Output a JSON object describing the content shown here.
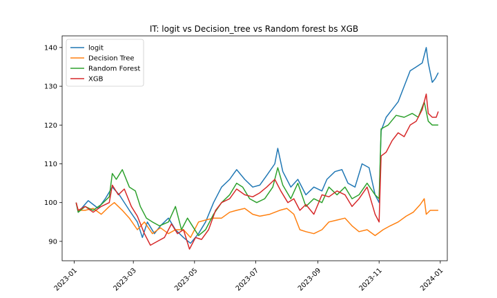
{
  "chart_data": {
    "type": "line",
    "title": "IT: logit vs Decision_tree vs Random forest bs XGB",
    "xlabel": "",
    "ylabel": "",
    "xlim": [
      "2022-12-20",
      "2024-01-08"
    ],
    "ylim": [
      85,
      143
    ],
    "x_ticks": [
      "2023-01",
      "2023-03",
      "2023-05",
      "2023-07",
      "2023-09",
      "2023-11",
      "2024-01"
    ],
    "y_ticks": [
      90,
      100,
      110,
      120,
      130,
      140
    ],
    "grid": false,
    "legend_position": "top-left",
    "series": [
      {
        "name": "logit",
        "color": "#1f77b4",
        "points": [
          [
            "2023-01-03",
            100
          ],
          [
            "2023-01-05",
            97.5
          ],
          [
            "2023-01-10",
            99
          ],
          [
            "2023-01-15",
            100.5
          ],
          [
            "2023-01-25",
            98.5
          ],
          [
            "2023-02-01",
            101
          ],
          [
            "2023-02-08",
            104
          ],
          [
            "2023-02-15",
            102
          ],
          [
            "2023-02-25",
            98
          ],
          [
            "2023-03-05",
            95
          ],
          [
            "2023-03-10",
            91
          ],
          [
            "2023-03-15",
            95
          ],
          [
            "2023-03-22",
            92
          ],
          [
            "2023-03-28",
            94
          ],
          [
            "2023-04-05",
            96
          ],
          [
            "2023-04-12",
            93
          ],
          [
            "2023-04-20",
            91
          ],
          [
            "2023-04-27",
            89.5
          ],
          [
            "2023-05-05",
            92
          ],
          [
            "2023-05-12",
            95
          ],
          [
            "2023-05-20",
            100
          ],
          [
            "2023-05-28",
            104
          ],
          [
            "2023-06-05",
            106
          ],
          [
            "2023-06-12",
            108.5
          ],
          [
            "2023-06-20",
            106
          ],
          [
            "2023-06-28",
            104
          ],
          [
            "2023-07-05",
            104.5
          ],
          [
            "2023-07-12",
            107
          ],
          [
            "2023-07-20",
            110
          ],
          [
            "2023-07-23",
            114
          ],
          [
            "2023-07-28",
            108
          ],
          [
            "2023-08-05",
            104
          ],
          [
            "2023-08-12",
            106
          ],
          [
            "2023-08-20",
            102
          ],
          [
            "2023-08-28",
            104
          ],
          [
            "2023-09-05",
            103
          ],
          [
            "2023-09-10",
            106
          ],
          [
            "2023-09-18",
            108
          ],
          [
            "2023-09-25",
            108.5
          ],
          [
            "2023-10-01",
            105
          ],
          [
            "2023-10-08",
            104
          ],
          [
            "2023-10-15",
            110
          ],
          [
            "2023-10-22",
            109
          ],
          [
            "2023-10-28",
            102
          ],
          [
            "2023-11-01",
            100
          ],
          [
            "2023-11-03",
            118.5
          ],
          [
            "2023-11-08",
            122
          ],
          [
            "2023-11-14",
            124
          ],
          [
            "2023-11-20",
            126
          ],
          [
            "2023-11-26",
            130
          ],
          [
            "2023-12-02",
            134
          ],
          [
            "2023-12-08",
            135
          ],
          [
            "2023-12-14",
            136
          ],
          [
            "2023-12-18",
            140
          ],
          [
            "2023-12-20",
            136
          ],
          [
            "2023-12-24",
            131
          ],
          [
            "2023-12-27",
            132
          ],
          [
            "2023-12-30",
            133.5
          ]
        ]
      },
      {
        "name": "Decision Tree",
        "color": "#ff7f0e",
        "points": [
          [
            "2023-01-03",
            100
          ],
          [
            "2023-01-05",
            98
          ],
          [
            "2023-01-12",
            98
          ],
          [
            "2023-01-20",
            98.5
          ],
          [
            "2023-01-28",
            97
          ],
          [
            "2023-02-05",
            99
          ],
          [
            "2023-02-10",
            100
          ],
          [
            "2023-02-18",
            98
          ],
          [
            "2023-02-25",
            96
          ],
          [
            "2023-03-05",
            93
          ],
          [
            "2023-03-12",
            95
          ],
          [
            "2023-03-20",
            92
          ],
          [
            "2023-03-28",
            93.5
          ],
          [
            "2023-04-05",
            92
          ],
          [
            "2023-04-12",
            93
          ],
          [
            "2023-04-20",
            93
          ],
          [
            "2023-04-27",
            91
          ],
          [
            "2023-05-05",
            95
          ],
          [
            "2023-05-12",
            95.5
          ],
          [
            "2023-05-20",
            96
          ],
          [
            "2023-05-28",
            96
          ],
          [
            "2023-06-05",
            97.5
          ],
          [
            "2023-06-12",
            98
          ],
          [
            "2023-06-20",
            98.5
          ],
          [
            "2023-06-28",
            97
          ],
          [
            "2023-07-05",
            96.5
          ],
          [
            "2023-07-15",
            97
          ],
          [
            "2023-07-25",
            98
          ],
          [
            "2023-08-01",
            98.5
          ],
          [
            "2023-08-08",
            97
          ],
          [
            "2023-08-14",
            93
          ],
          [
            "2023-08-20",
            92.5
          ],
          [
            "2023-08-28",
            92
          ],
          [
            "2023-09-05",
            93
          ],
          [
            "2023-09-12",
            95
          ],
          [
            "2023-09-20",
            95.5
          ],
          [
            "2023-09-28",
            96
          ],
          [
            "2023-10-05",
            94
          ],
          [
            "2023-10-12",
            92.5
          ],
          [
            "2023-10-20",
            93
          ],
          [
            "2023-10-28",
            91.5
          ],
          [
            "2023-11-05",
            93
          ],
          [
            "2023-11-12",
            94
          ],
          [
            "2023-11-20",
            95
          ],
          [
            "2023-11-28",
            96.5
          ],
          [
            "2023-12-05",
            97.5
          ],
          [
            "2023-12-12",
            99.5
          ],
          [
            "2023-12-16",
            101
          ],
          [
            "2023-12-18",
            97
          ],
          [
            "2023-12-22",
            98
          ],
          [
            "2023-12-26",
            98
          ],
          [
            "2023-12-30",
            98
          ]
        ]
      },
      {
        "name": "Random Forest",
        "color": "#2ca02c",
        "points": [
          [
            "2023-01-03",
            100
          ],
          [
            "2023-01-05",
            97.5
          ],
          [
            "2023-01-12",
            99
          ],
          [
            "2023-01-20",
            98
          ],
          [
            "2023-01-28",
            99.5
          ],
          [
            "2023-02-05",
            101.5
          ],
          [
            "2023-02-08",
            107.5
          ],
          [
            "2023-02-12",
            106
          ],
          [
            "2023-02-18",
            108.5
          ],
          [
            "2023-02-25",
            104
          ],
          [
            "2023-03-03",
            103
          ],
          [
            "2023-03-08",
            99
          ],
          [
            "2023-03-14",
            96
          ],
          [
            "2023-03-20",
            95
          ],
          [
            "2023-03-27",
            94
          ],
          [
            "2023-04-05",
            95
          ],
          [
            "2023-04-12",
            99
          ],
          [
            "2023-04-18",
            93
          ],
          [
            "2023-04-24",
            96
          ],
          [
            "2023-04-30",
            93.5
          ],
          [
            "2023-05-05",
            91.5
          ],
          [
            "2023-05-12",
            93
          ],
          [
            "2023-05-20",
            97
          ],
          [
            "2023-05-28",
            100
          ],
          [
            "2023-06-05",
            102
          ],
          [
            "2023-06-12",
            105
          ],
          [
            "2023-06-18",
            104
          ],
          [
            "2023-06-25",
            101
          ],
          [
            "2023-07-02",
            100
          ],
          [
            "2023-07-10",
            101
          ],
          [
            "2023-07-18",
            104
          ],
          [
            "2023-07-23",
            109
          ],
          [
            "2023-07-28",
            104.5
          ],
          [
            "2023-08-05",
            101
          ],
          [
            "2023-08-12",
            105
          ],
          [
            "2023-08-20",
            99
          ],
          [
            "2023-08-28",
            101
          ],
          [
            "2023-09-05",
            100
          ],
          [
            "2023-09-12",
            104
          ],
          [
            "2023-09-20",
            102
          ],
          [
            "2023-09-28",
            104
          ],
          [
            "2023-10-05",
            101
          ],
          [
            "2023-10-12",
            102
          ],
          [
            "2023-10-20",
            105
          ],
          [
            "2023-10-28",
            102
          ],
          [
            "2023-11-01",
            101
          ],
          [
            "2023-11-03",
            119
          ],
          [
            "2023-11-10",
            120
          ],
          [
            "2023-11-18",
            122.5
          ],
          [
            "2023-11-26",
            122
          ],
          [
            "2023-12-04",
            123
          ],
          [
            "2023-12-10",
            122
          ],
          [
            "2023-12-16",
            126
          ],
          [
            "2023-12-20",
            121
          ],
          [
            "2023-12-24",
            120
          ],
          [
            "2023-12-30",
            120
          ]
        ]
      },
      {
        "name": "XGB",
        "color": "#d62728",
        "points": [
          [
            "2023-01-03",
            100
          ],
          [
            "2023-01-05",
            98
          ],
          [
            "2023-01-12",
            99
          ],
          [
            "2023-01-20",
            97.5
          ],
          [
            "2023-01-28",
            99
          ],
          [
            "2023-02-05",
            100
          ],
          [
            "2023-02-08",
            104.5
          ],
          [
            "2023-02-14",
            102
          ],
          [
            "2023-02-20",
            103.5
          ],
          [
            "2023-02-27",
            99
          ],
          [
            "2023-03-05",
            96.5
          ],
          [
            "2023-03-12",
            92
          ],
          [
            "2023-03-18",
            89
          ],
          [
            "2023-03-25",
            90
          ],
          [
            "2023-04-01",
            91
          ],
          [
            "2023-04-08",
            94.5
          ],
          [
            "2023-04-14",
            92
          ],
          [
            "2023-04-20",
            93
          ],
          [
            "2023-04-26",
            88
          ],
          [
            "2023-05-02",
            91
          ],
          [
            "2023-05-08",
            90.5
          ],
          [
            "2023-05-15",
            93
          ],
          [
            "2023-05-22",
            98
          ],
          [
            "2023-05-28",
            100
          ],
          [
            "2023-06-05",
            101
          ],
          [
            "2023-06-12",
            103.5
          ],
          [
            "2023-06-20",
            102
          ],
          [
            "2023-06-28",
            101.5
          ],
          [
            "2023-07-05",
            102.5
          ],
          [
            "2023-07-12",
            104
          ],
          [
            "2023-07-20",
            106
          ],
          [
            "2023-07-26",
            103
          ],
          [
            "2023-08-02",
            100
          ],
          [
            "2023-08-08",
            101
          ],
          [
            "2023-08-14",
            98
          ],
          [
            "2023-08-20",
            99.5
          ],
          [
            "2023-08-28",
            97
          ],
          [
            "2023-09-05",
            102
          ],
          [
            "2023-09-12",
            101.5
          ],
          [
            "2023-09-20",
            103
          ],
          [
            "2023-09-28",
            102
          ],
          [
            "2023-10-05",
            99
          ],
          [
            "2023-10-12",
            101
          ],
          [
            "2023-10-20",
            104
          ],
          [
            "2023-10-28",
            97
          ],
          [
            "2023-11-01",
            95
          ],
          [
            "2023-11-03",
            112
          ],
          [
            "2023-11-08",
            113
          ],
          [
            "2023-11-14",
            116
          ],
          [
            "2023-11-20",
            118
          ],
          [
            "2023-11-26",
            117
          ],
          [
            "2023-12-02",
            120
          ],
          [
            "2023-12-08",
            121
          ],
          [
            "2023-12-14",
            124
          ],
          [
            "2023-12-18",
            128
          ],
          [
            "2023-12-20",
            123
          ],
          [
            "2023-12-24",
            122
          ],
          [
            "2023-12-28",
            122
          ],
          [
            "2023-12-30",
            123.5
          ]
        ]
      }
    ]
  }
}
